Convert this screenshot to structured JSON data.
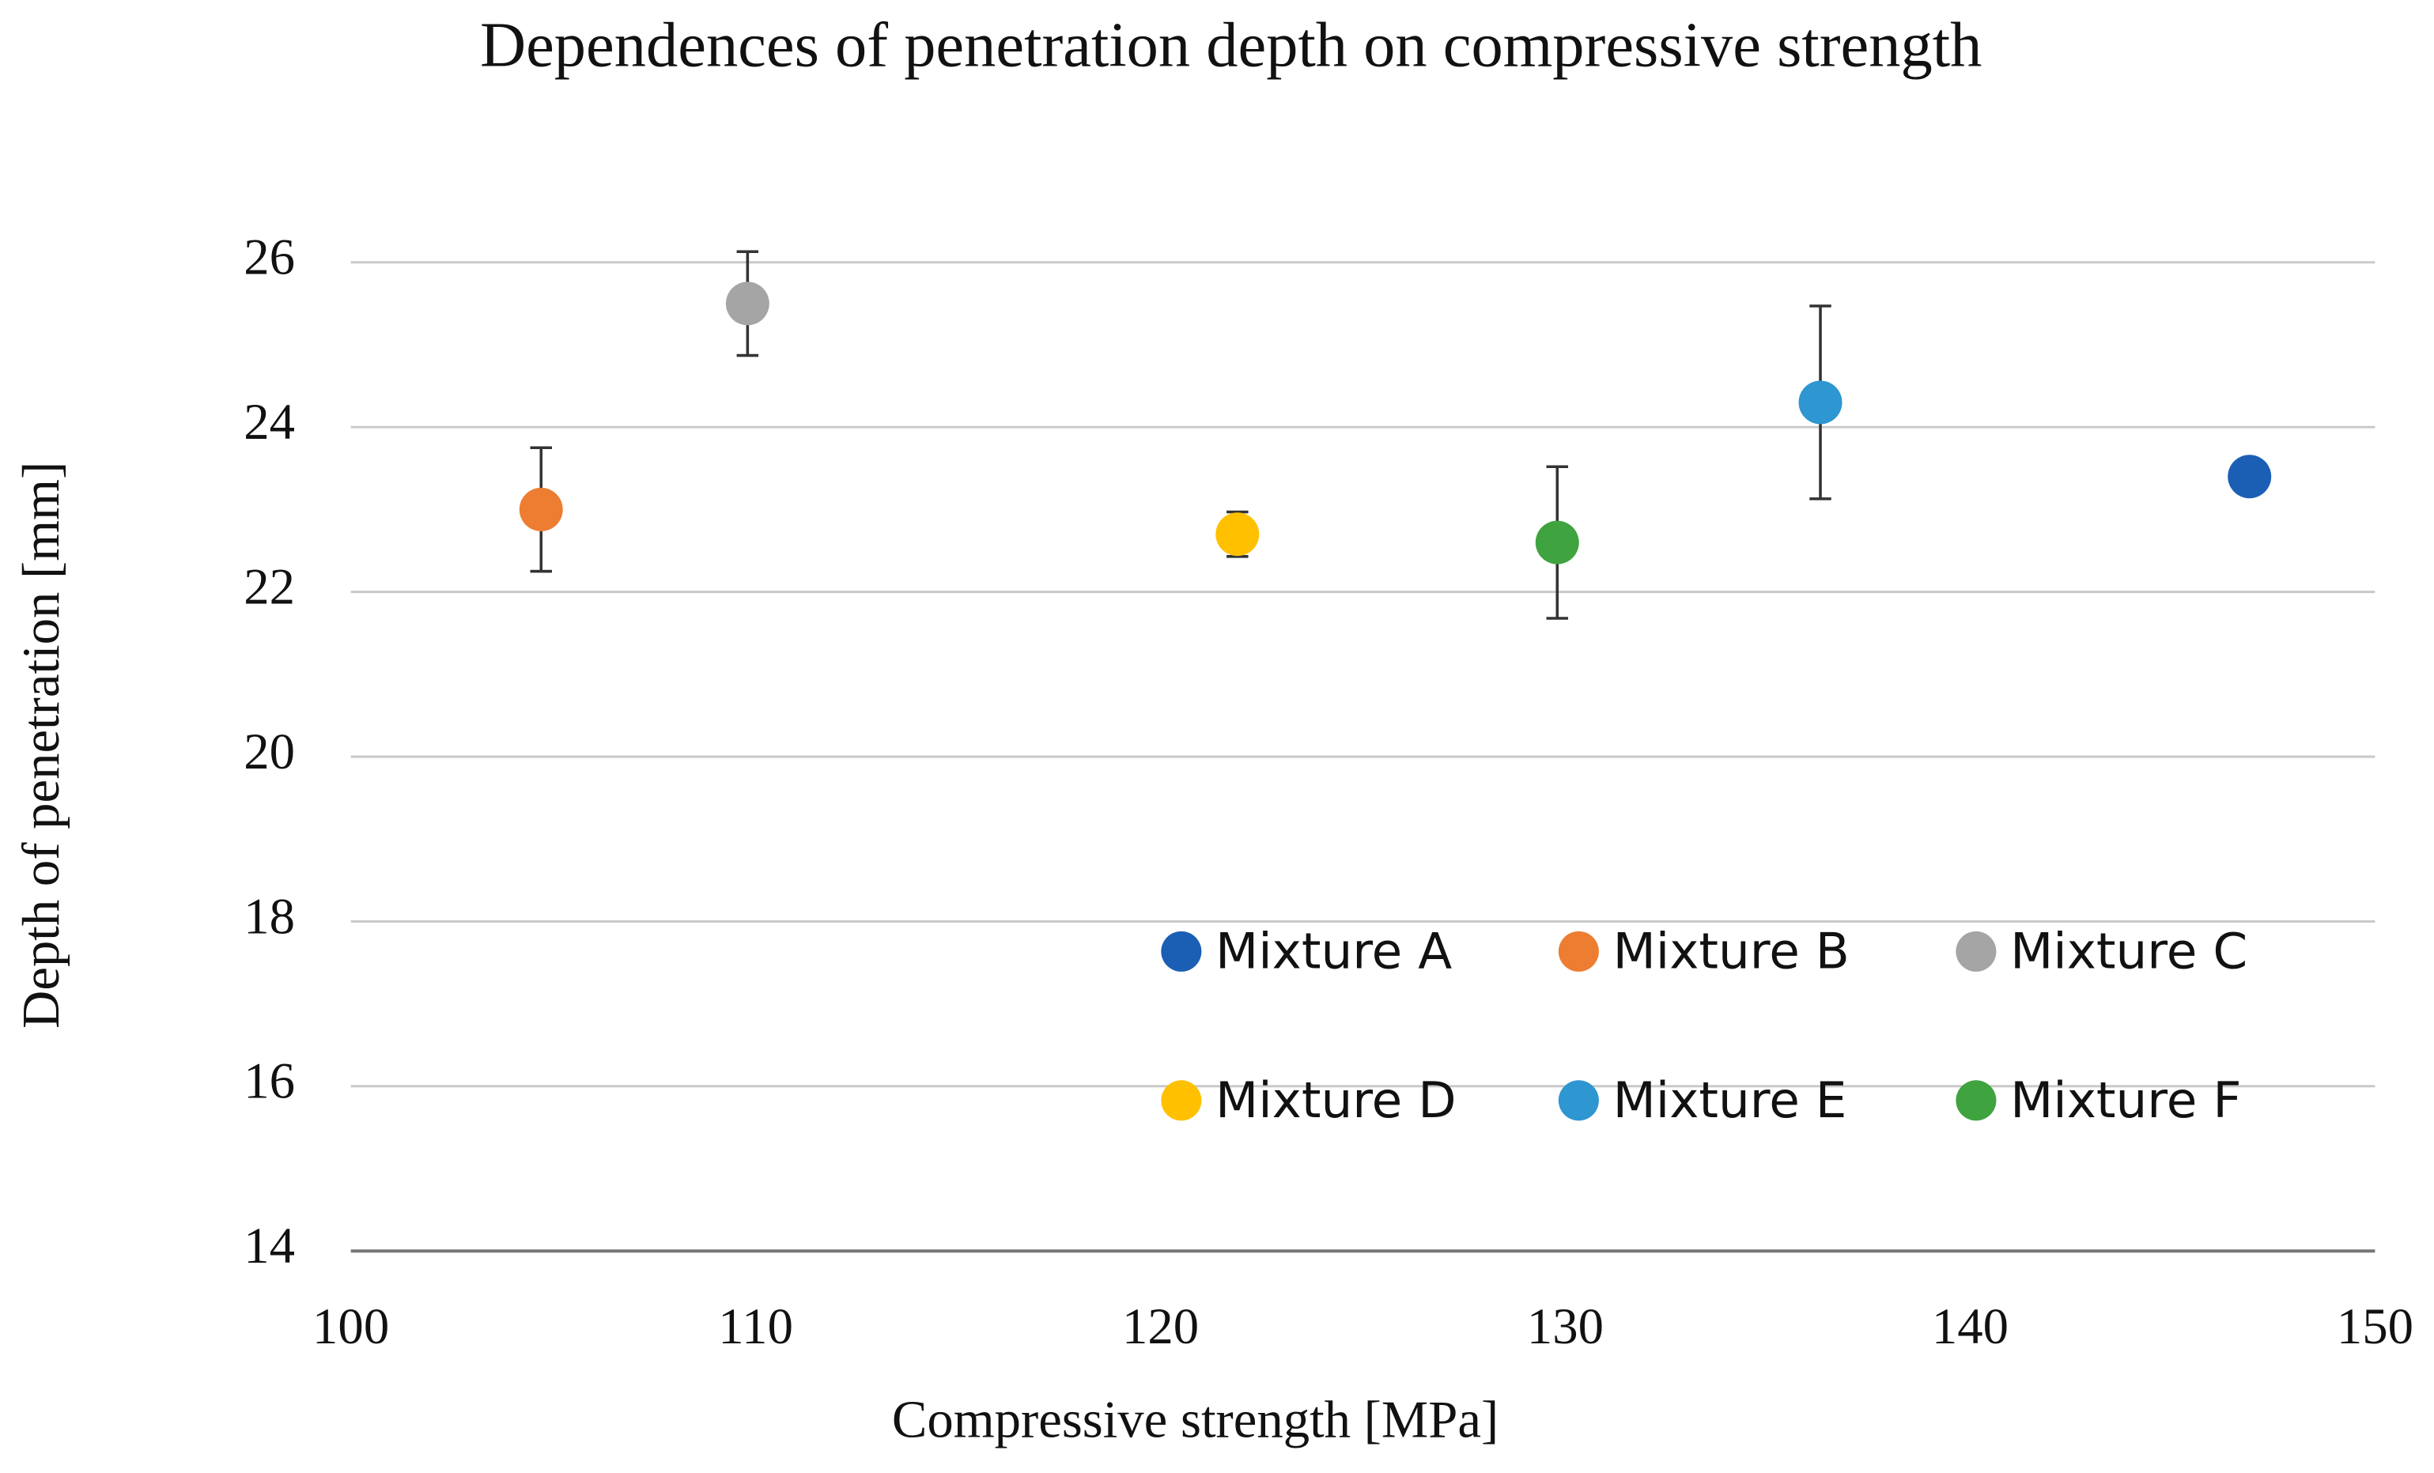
{
  "chart_data": {
    "type": "scatter",
    "title": "Dependences of penetration depth on compressive strength",
    "x_label": "Compressive strength [MPa]",
    "y_label": "Depth of penetration [mm]",
    "xlim": [
      100,
      150
    ],
    "xticks": [
      100,
      110,
      120,
      130,
      140,
      150
    ],
    "ylim": [
      14,
      26
    ],
    "yticks": [
      14,
      16,
      18,
      20,
      22,
      24,
      26
    ],
    "grid": true,
    "legend": "lower right",
    "series": [
      {
        "name": "Mixture A",
        "color": "#1b5fb5",
        "x": [
          146.9
        ],
        "values": [
          23.4
        ]
      },
      {
        "name": "Mixture B",
        "color": "#ed7d31",
        "x": [
          104.7
        ],
        "values": [
          23.0
        ],
        "errors": [
          0.75
        ]
      },
      {
        "name": "Mixture C",
        "color": "#a5a5a5",
        "x": [
          109.8
        ],
        "values": [
          25.5
        ],
        "errors": [
          0.63
        ]
      },
      {
        "name": "Mixture D",
        "color": "#ffc000",
        "x": [
          121.9
        ],
        "values": [
          22.7
        ],
        "errors": [
          0.27
        ]
      },
      {
        "name": "Mixture E",
        "color": "#2e96d0",
        "x": [
          136.3
        ],
        "values": [
          24.3
        ],
        "errors": [
          1.17
        ]
      },
      {
        "name": "Mixture F",
        "color": "#3fa33f",
        "x": [
          129.8
        ],
        "values": [
          22.6
        ],
        "errors": [
          0.92
        ]
      }
    ]
  }
}
